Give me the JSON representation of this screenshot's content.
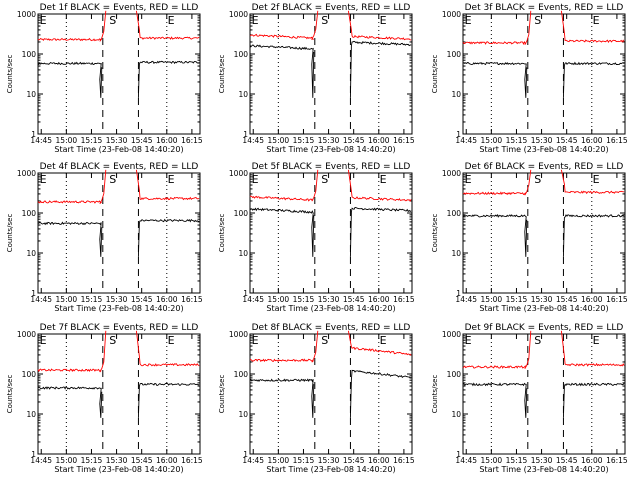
{
  "chart_data": [
    {
      "type": "line",
      "title": "Det 1f BLACK = Events, RED = LLD",
      "xlabel": "Start Time (23-Feb-08 14:40:20)",
      "ylabel": "Counts/sec",
      "xticks": [
        "14:45",
        "15:00",
        "15:15",
        "15:30",
        "15:45",
        "16:00",
        "16:15"
      ],
      "yticks": [
        "1",
        "10",
        "100",
        "1000"
      ],
      "ylim": [
        1,
        1000
      ],
      "yscale": "log",
      "markers": [
        "E",
        "S",
        "E"
      ],
      "series": [
        {
          "color": "#ff0000",
          "base": 230,
          "pre": 230,
          "post": 250
        },
        {
          "color": "#000000",
          "base": 60,
          "pre": 58,
          "post": 62
        }
      ],
      "style": "flat"
    },
    {
      "type": "line",
      "title": "Det 2f BLACK = Events, RED = LLD",
      "xlabel": "Start Time (23-Feb-08 14:40:20)",
      "ylabel": "Counts/sec",
      "xticks": [
        "14:45",
        "15:00",
        "15:15",
        "15:30",
        "15:45",
        "16:00",
        "16:15"
      ],
      "yticks": [
        "1",
        "10",
        "100",
        "1000"
      ],
      "ylim": [
        1,
        1000
      ],
      "yscale": "log",
      "markers": [
        "E",
        "S",
        "E"
      ],
      "series": [
        {
          "color": "#ff0000",
          "base": 300,
          "pre": 260,
          "post": 250
        },
        {
          "color": "#000000",
          "base": 170,
          "pre": 140,
          "post": 180
        }
      ],
      "style": "decline"
    },
    {
      "type": "line",
      "title": "Det 3f BLACK = Events, RED = LLD",
      "xlabel": "Start Time (23-Feb-08 14:40:20)",
      "ylabel": "Counts/sec",
      "xticks": [
        "14:45",
        "15:00",
        "15:15",
        "15:30",
        "15:45",
        "16:00",
        "16:15"
      ],
      "yticks": [
        "1",
        "10",
        "100",
        "1000"
      ],
      "ylim": [
        1,
        1000
      ],
      "yscale": "log",
      "markers": [
        "E",
        "S",
        "E"
      ],
      "series": [
        {
          "color": "#ff0000",
          "base": 200,
          "pre": 190,
          "post": 210
        },
        {
          "color": "#000000",
          "base": 60,
          "pre": 58,
          "post": 58
        }
      ],
      "style": "flat"
    },
    {
      "type": "line",
      "title": "Det 4f BLACK = Events, RED = LLD",
      "xlabel": "Start Time (23-Feb-08 14:40:20)",
      "ylabel": "Counts/sec",
      "xticks": [
        "14:45",
        "15:00",
        "15:15",
        "15:30",
        "15:45",
        "16:00",
        "16:15"
      ],
      "yticks": [
        "1",
        "10",
        "100",
        "1000"
      ],
      "ylim": [
        1,
        1000
      ],
      "yscale": "log",
      "markers": [
        "E",
        "S",
        "E"
      ],
      "series": [
        {
          "color": "#ff0000",
          "base": 200,
          "pre": 190,
          "post": 230
        },
        {
          "color": "#000000",
          "base": 60,
          "pre": 55,
          "post": 65
        }
      ],
      "style": "flat"
    },
    {
      "type": "line",
      "title": "Det 5f BLACK = Events, RED = LLD",
      "xlabel": "Start Time (23-Feb-08 14:40:20)",
      "ylabel": "Counts/sec",
      "xticks": [
        "14:45",
        "15:00",
        "15:15",
        "15:30",
        "15:45",
        "16:00",
        "16:15"
      ],
      "yticks": [
        "1",
        "10",
        "100",
        "1000"
      ],
      "ylim": [
        1,
        1000
      ],
      "yscale": "log",
      "markers": [
        "E",
        "S",
        "E"
      ],
      "series": [
        {
          "color": "#ff0000",
          "base": 250,
          "pre": 220,
          "post": 220
        },
        {
          "color": "#000000",
          "base": 130,
          "pre": 110,
          "post": 120
        }
      ],
      "style": "decline"
    },
    {
      "type": "line",
      "title": "Det 6f BLACK = Events, RED = LLD",
      "xlabel": "Start Time (23-Feb-08 14:40:20)",
      "ylabel": "Counts/sec",
      "xticks": [
        "14:45",
        "15:00",
        "15:15",
        "15:30",
        "15:45",
        "16:00",
        "16:15"
      ],
      "yticks": [
        "1",
        "10",
        "100",
        "1000"
      ],
      "ylim": [
        1,
        1000
      ],
      "yscale": "log",
      "markers": [
        "E",
        "S",
        "E"
      ],
      "series": [
        {
          "color": "#ff0000",
          "base": 340,
          "pre": 310,
          "post": 330
        },
        {
          "color": "#000000",
          "base": 90,
          "pre": 85,
          "post": 85
        }
      ],
      "style": "flat"
    },
    {
      "type": "line",
      "title": "Det 7f BLACK = Events, RED = LLD",
      "xlabel": "Start Time (23-Feb-08 14:40:20)",
      "ylabel": "Counts/sec",
      "xticks": [
        "14:45",
        "15:00",
        "15:15",
        "15:30",
        "15:45",
        "16:00",
        "16:15"
      ],
      "yticks": [
        "1",
        "10",
        "100",
        "1000"
      ],
      "ylim": [
        1,
        1000
      ],
      "yscale": "log",
      "markers": [
        "E",
        "S",
        "E"
      ],
      "series": [
        {
          "color": "#ff0000",
          "base": 130,
          "pre": 125,
          "post": 170
        },
        {
          "color": "#000000",
          "base": 45,
          "pre": 45,
          "post": 55
        }
      ],
      "style": "flat"
    },
    {
      "type": "line",
      "title": "Det 8f BLACK = Events, RED = LLD",
      "xlabel": "Start Time (23-Feb-08 14:40:20)",
      "ylabel": "Counts/sec",
      "xticks": [
        "14:45",
        "15:00",
        "15:15",
        "15:30",
        "15:45",
        "16:00",
        "16:15"
      ],
      "yticks": [
        "1",
        "10",
        "100",
        "1000"
      ],
      "ylim": [
        1,
        1000
      ],
      "yscale": "log",
      "markers": [
        "E",
        "S",
        "E"
      ],
      "series": [
        {
          "color": "#ff0000",
          "base": 220,
          "pre": 220,
          "post": 300
        },
        {
          "color": "#000000",
          "base": 75,
          "pre": 70,
          "post": 80
        }
      ],
      "style": "decay"
    },
    {
      "type": "line",
      "title": "Det 9f BLACK = Events, RED = LLD",
      "xlabel": "Start Time (23-Feb-08 14:40:20)",
      "ylabel": "Counts/sec",
      "xticks": [
        "14:45",
        "15:00",
        "15:15",
        "15:30",
        "15:45",
        "16:00",
        "16:15"
      ],
      "yticks": [
        "1",
        "10",
        "100",
        "1000"
      ],
      "ylim": [
        1,
        1000
      ],
      "yscale": "log",
      "markers": [
        "E",
        "S",
        "E"
      ],
      "series": [
        {
          "color": "#ff0000",
          "base": 150,
          "pre": 150,
          "post": 170
        },
        {
          "color": "#000000",
          "base": 55,
          "pre": 55,
          "post": 55
        }
      ],
      "style": "flat"
    }
  ]
}
